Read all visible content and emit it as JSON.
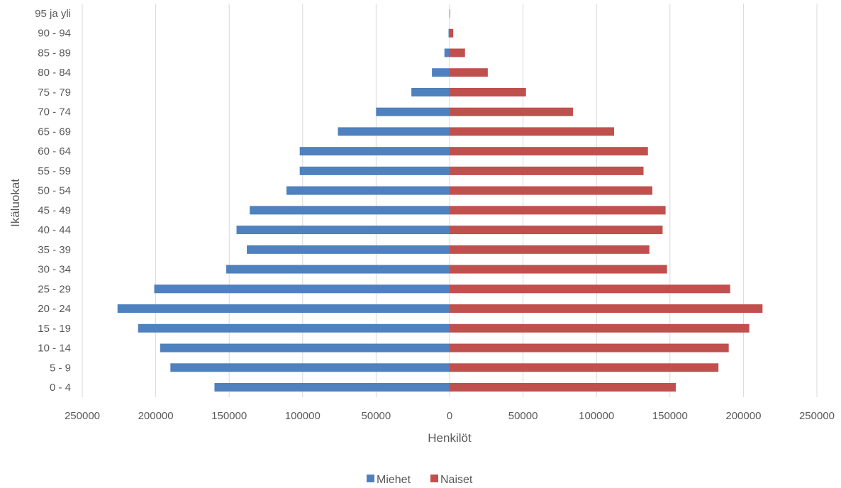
{
  "chart_data": {
    "type": "bar",
    "orientation": "horizontal",
    "categories": [
      "0 - 4",
      "5 - 9",
      "10 - 14",
      "15 - 19",
      "20 - 24",
      "25 - 29",
      "30 - 34",
      "35 - 39",
      "40 - 44",
      "45 - 49",
      "50 - 54",
      "55 - 59",
      "60 - 64",
      "65 - 69",
      "70 - 74",
      "75 - 79",
      "80 - 84",
      "85 - 89",
      "90 - 94",
      "95 ja yli"
    ],
    "series": [
      {
        "name": "Miehet",
        "color": "#4e81bd",
        "values": [
          160000,
          190000,
          197000,
          212000,
          226000,
          201000,
          152000,
          138000,
          145000,
          136000,
          111000,
          102000,
          102000,
          76000,
          50000,
          26000,
          12000,
          3500,
          700,
          100
        ]
      },
      {
        "name": "Naiset",
        "color": "#c0504d",
        "values": [
          154000,
          183000,
          190000,
          204000,
          213000,
          191000,
          148000,
          136000,
          145000,
          147000,
          138000,
          132000,
          135000,
          112000,
          84000,
          52000,
          26000,
          10500,
          2500,
          300
        ]
      }
    ],
    "xlim": [
      -250000,
      250000
    ],
    "xticks": [
      -250000,
      -200000,
      -150000,
      -100000,
      -50000,
      0,
      50000,
      100000,
      150000,
      200000,
      250000
    ],
    "xtick_labels": [
      "250000",
      "200000",
      "150000",
      "100000",
      "50000",
      "0",
      "50000",
      "100000",
      "150000",
      "200000",
      "250000"
    ],
    "xlabel": "Henkilöt",
    "ylabel": "Ikäluokat",
    "grid": true,
    "legend": "bottom"
  }
}
